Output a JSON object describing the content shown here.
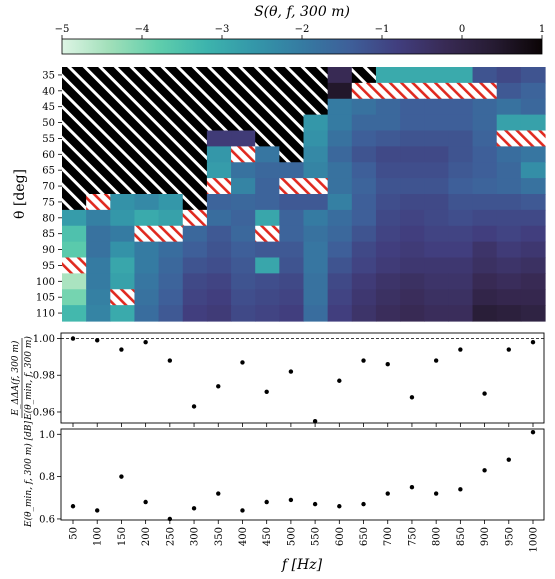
{
  "figure": {
    "colorbar_label": "S(θ, f, 300 m)",
    "heatmap_ylabel": "θ [deg]",
    "mid_ylabel_top": "E_ΔΔA(f, 300 m)",
    "mid_ylabel_bottom": "E(θ_min, f, 300 m)",
    "bottom_ylabel": "E(θ_min, f, 300 m) [dB]",
    "xlabel": "f [Hz]"
  },
  "chart_data": [
    {
      "type": "heatmap",
      "title": "",
      "colorbar": {
        "label": "S(θ, f, 300 m)",
        "range": [
          -5,
          1
        ],
        "ticks": [
          -5,
          -4,
          -3,
          -2,
          -1,
          0,
          1
        ],
        "position": "top",
        "colormap": "mako_r"
      },
      "x_categories": [
        "50",
        "100",
        "150",
        "200",
        "250",
        "300",
        "350",
        "400",
        "450",
        "500",
        "550",
        "600",
        "650",
        "700",
        "750",
        "800",
        "850",
        "900",
        "950",
        "1000"
      ],
      "y_categories": [
        "35",
        "40",
        "45",
        "50",
        "55",
        "60",
        "65",
        "70",
        "75",
        "80",
        "85",
        "90",
        "95",
        "100",
        "105",
        "110"
      ],
      "ylabel": "θ [deg]",
      "masked_region": "black hatched = outside domain",
      "invalid_cells_hatch": "red hatched",
      "values": [
        [
          "M",
          "M",
          "M",
          "M",
          "M",
          "M",
          "M",
          "M",
          "M",
          "M",
          "M",
          -0.2,
          "M",
          -3.0,
          -3.0,
          -3.0,
          -3.0,
          -1.2,
          -1.0,
          -1.2
        ],
        [
          "M",
          "M",
          "M",
          "M",
          "M",
          "M",
          "M",
          "M",
          "M",
          "M",
          "M",
          0.5,
          "X",
          "X",
          "X",
          "X",
          "X",
          "X",
          -1.3,
          -1.5
        ],
        [
          "M",
          "M",
          "M",
          "M",
          "M",
          "M",
          "M",
          "M",
          "M",
          "M",
          "M",
          -2.0,
          -1.8,
          -1.6,
          -1.4,
          -1.4,
          -1.4,
          -1.6,
          -1.8,
          -1.6
        ],
        [
          "M",
          "M",
          "M",
          "M",
          "M",
          "M",
          "M",
          "M",
          "M",
          "M",
          -2.6,
          -2.0,
          -1.6,
          -1.6,
          -1.4,
          -1.4,
          -1.4,
          -1.6,
          -2.8,
          -2.8
        ],
        [
          "M",
          "M",
          "M",
          "M",
          "M",
          "M",
          -0.7,
          -0.7,
          "M",
          "M",
          -2.5,
          -1.8,
          -1.4,
          -1.3,
          -1.2,
          -1.2,
          -1.2,
          -1.5,
          "X",
          "X"
        ],
        [
          "M",
          "M",
          "M",
          "M",
          "M",
          "M",
          -2.6,
          "X",
          -1.9,
          "M",
          -2.3,
          -1.6,
          -1.2,
          -1.0,
          -1.0,
          -1.0,
          -1.2,
          -1.4,
          -1.7,
          -1.9
        ],
        [
          "M",
          "M",
          "M",
          "M",
          "M",
          "M",
          -2.7,
          -1.8,
          -1.6,
          -1.6,
          -2.2,
          -1.8,
          -1.4,
          -1.1,
          -1.1,
          -1.1,
          -1.3,
          -1.4,
          -1.6,
          -2.4
        ],
        [
          "M",
          "M",
          "M",
          "M",
          "M",
          "M",
          "X",
          -2.2,
          -1.5,
          "X",
          "X",
          -1.8,
          -1.5,
          -1.2,
          -1.2,
          -1.2,
          -1.4,
          -1.5,
          -1.6,
          -1.8
        ],
        [
          "M",
          "X",
          -2.5,
          -2.3,
          -2.6,
          "M",
          -1.5,
          -1.6,
          -1.5,
          -1.3,
          -1.3,
          -2.1,
          -1.4,
          -1.1,
          -1.0,
          -1.0,
          -1.2,
          -1.2,
          -1.2,
          -1.3
        ],
        [
          -2.7,
          -2.1,
          -2.6,
          -3.0,
          -2.8,
          "X",
          -1.7,
          -1.5,
          -2.9,
          -1.5,
          -2.0,
          -1.7,
          -1.4,
          -1.0,
          -0.9,
          -1.0,
          -1.1,
          -1.0,
          -1.0,
          -1.0
        ],
        [
          -3.5,
          -1.8,
          -2.0,
          "X",
          "X",
          -1.6,
          -1.3,
          -1.6,
          "X",
          -1.5,
          -1.8,
          -1.6,
          -1.2,
          -0.9,
          -0.8,
          -0.9,
          -0.9,
          -0.8,
          -0.9,
          -0.8
        ],
        [
          -3.7,
          -1.8,
          -2.5,
          -2.0,
          -1.7,
          -1.4,
          -1.2,
          -1.4,
          -1.3,
          -1.3,
          -1.9,
          -1.4,
          -1.0,
          -0.8,
          -0.7,
          -0.8,
          -0.8,
          -0.5,
          -0.7,
          -0.6
        ],
        [
          "X",
          -2.0,
          -2.9,
          -2.0,
          -1.6,
          -1.2,
          -1.1,
          -1.3,
          -2.9,
          -1.2,
          -1.9,
          -1.2,
          -0.9,
          -0.7,
          -0.6,
          -0.6,
          -0.6,
          -0.4,
          -0.5,
          -0.4
        ],
        [
          -4.5,
          -2.0,
          -2.8,
          -1.9,
          -1.5,
          -1.0,
          -0.9,
          -1.2,
          -1.1,
          -1.0,
          -1.8,
          -1.0,
          -0.7,
          -0.5,
          -0.4,
          -0.5,
          -0.5,
          -0.2,
          -0.3,
          -0.2
        ],
        [
          -4.0,
          -2.1,
          "X",
          -1.8,
          -1.4,
          -0.9,
          -0.8,
          -1.1,
          -1.0,
          -0.9,
          -1.8,
          -0.9,
          -0.6,
          -0.4,
          -0.3,
          -0.4,
          -0.4,
          0.0,
          -0.1,
          -0.1
        ],
        [
          -3.3,
          -2.2,
          -3.0,
          -1.7,
          -1.3,
          -0.8,
          -0.7,
          -1.0,
          -0.9,
          -0.8,
          -1.7,
          -0.8,
          -0.5,
          -0.3,
          -0.2,
          -0.3,
          -0.3,
          0.3,
          0.2,
          0.1
        ]
      ]
    },
    {
      "type": "scatter",
      "title": "",
      "ylabel": "E_ΔΔA(f, 300 m) / E(θ_min, f, 300 m)",
      "ylim": [
        0.954,
        1.003
      ],
      "yticks": [
        0.96,
        0.98,
        1.0
      ],
      "reference_line": 1.0,
      "x": [
        50,
        100,
        150,
        200,
        250,
        300,
        350,
        400,
        450,
        500,
        550,
        600,
        650,
        700,
        750,
        800,
        850,
        900,
        950,
        1000
      ],
      "y": [
        1.0,
        0.999,
        0.994,
        0.998,
        0.988,
        0.963,
        0.974,
        0.987,
        0.971,
        0.982,
        0.955,
        0.977,
        0.988,
        0.986,
        0.968,
        0.988,
        0.994,
        0.97,
        0.994,
        0.998
      ]
    },
    {
      "type": "scatter",
      "title": "",
      "xlabel": "f [Hz]",
      "ylabel": "E(θ_min, f, 300 m) [dB]",
      "ylim": [
        0.595,
        1.025
      ],
      "yticks": [
        0.6,
        0.8,
        1.0
      ],
      "x": [
        50,
        100,
        150,
        200,
        250,
        300,
        350,
        400,
        450,
        500,
        550,
        600,
        650,
        700,
        750,
        800,
        850,
        900,
        950,
        1000
      ],
      "xtick_labels": [
        "50",
        "100",
        "150",
        "200",
        "250",
        "300",
        "350",
        "400",
        "450",
        "500",
        "550",
        "600",
        "650",
        "700",
        "750",
        "800",
        "850",
        "900",
        "950",
        "1000"
      ],
      "y": [
        0.66,
        0.64,
        0.8,
        0.68,
        0.6,
        0.65,
        0.72,
        0.64,
        0.68,
        0.69,
        0.67,
        0.66,
        0.67,
        0.72,
        0.75,
        0.72,
        0.74,
        0.83,
        0.88,
        1.01
      ]
    }
  ]
}
